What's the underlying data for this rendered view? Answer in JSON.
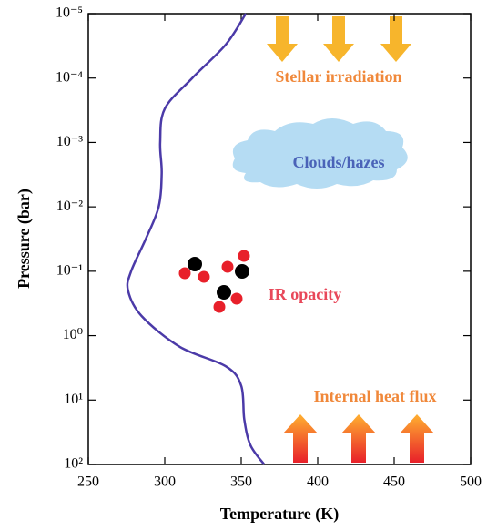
{
  "chart_data": {
    "type": "line",
    "x_label": "Temperature (K)",
    "y_label": "Pressure (bar)",
    "y_scale": "log",
    "xlim": [
      250,
      500
    ],
    "xticks": [
      250,
      300,
      350,
      400,
      450,
      500
    ],
    "ylim": [
      100,
      1e-05
    ],
    "yticks": [
      {
        "value": 1e-05,
        "label": "10⁻⁵"
      },
      {
        "value": 0.0001,
        "label": "10⁻⁴"
      },
      {
        "value": 0.001,
        "label": "10⁻³"
      },
      {
        "value": 0.01,
        "label": "10⁻²"
      },
      {
        "value": 0.1,
        "label": "10⁻¹"
      },
      {
        "value": 1,
        "label": "10⁰"
      },
      {
        "value": 10,
        "label": "10¹"
      },
      {
        "value": 100,
        "label": "10²"
      }
    ],
    "series": [
      {
        "color": "#4b3aa8",
        "x": [
          353,
          340,
          318,
          300,
          297,
          298,
          296,
          288,
          278,
          276,
          285,
          310,
          340,
          350,
          352,
          356,
          365
        ],
        "values": [
          1e-05,
          3e-05,
          0.0001,
          0.0003,
          0.001,
          0.003,
          0.01,
          0.03,
          0.1,
          0.2,
          0.5,
          1.5,
          3,
          6,
          20,
          50,
          100
        ]
      }
    ],
    "annotations": [
      {
        "text": "Stellar irradiation",
        "color": "#f0883a"
      },
      {
        "text": "Clouds/hazes",
        "color": "#4a63b8"
      },
      {
        "text": "IR opacity",
        "color": "#e8485a"
      },
      {
        "text": "Internal heat flux",
        "color": "#f0883a"
      }
    ]
  }
}
